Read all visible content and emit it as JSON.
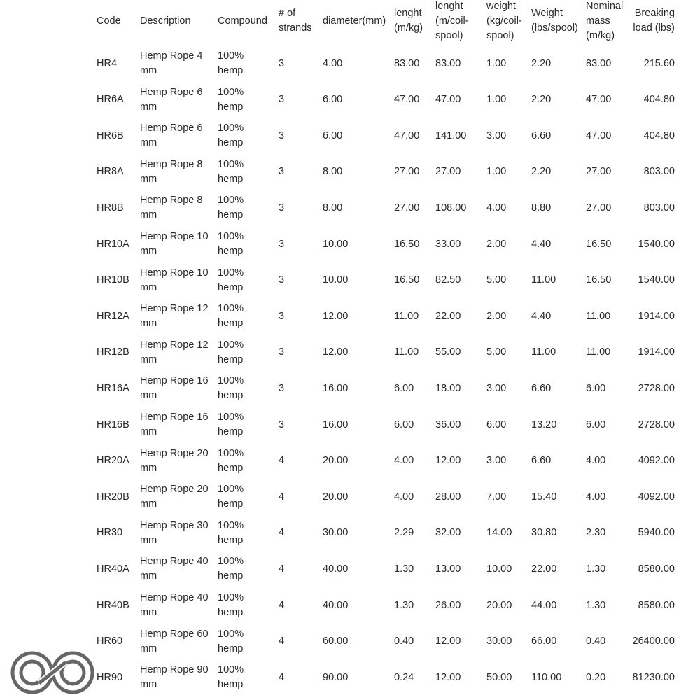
{
  "table": {
    "header": [
      "Code",
      "Description",
      "Compound",
      "# of strands",
      "diameter(mm)",
      "lenght (m/kg)",
      "lenght (m/coil-spool)",
      "weight (kg/coil-spool)",
      "Weight (lbs/spool)",
      "Nominal mass (m/kg)",
      "Breaking load (lbs)"
    ],
    "rows": [
      [
        "HR4",
        "Hemp Rope 4 mm",
        "100% hemp",
        "3",
        "4.00",
        "83.00",
        "83.00",
        "1.00",
        "2.20",
        "83.00",
        "215.60"
      ],
      [
        "HR6A",
        "Hemp Rope 6 mm",
        "100% hemp",
        "3",
        "6.00",
        "47.00",
        "47.00",
        "1.00",
        "2.20",
        "47.00",
        "404.80"
      ],
      [
        "HR6B",
        "Hemp Rope 6 mm",
        "100% hemp",
        "3",
        "6.00",
        "47.00",
        "141.00",
        "3.00",
        "6.60",
        "47.00",
        "404.80"
      ],
      [
        "HR8A",
        "Hemp Rope 8 mm",
        "100% hemp",
        "3",
        "8.00",
        "27.00",
        "27.00",
        "1.00",
        "2.20",
        "27.00",
        "803.00"
      ],
      [
        "HR8B",
        "Hemp Rope 8 mm",
        "100% hemp",
        "3",
        "8.00",
        "27.00",
        "108.00",
        "4.00",
        "8.80",
        "27.00",
        "803.00"
      ],
      [
        "HR10A",
        "Hemp Rope 10 mm",
        "100% hemp",
        "3",
        "10.00",
        "16.50",
        "33.00",
        "2.00",
        "4.40",
        "16.50",
        "1540.00"
      ],
      [
        "HR10B",
        "Hemp Rope 10 mm",
        "100% hemp",
        "3",
        "10.00",
        "16.50",
        "82.50",
        "5.00",
        "11.00",
        "16.50",
        "1540.00"
      ],
      [
        "HR12A",
        "Hemp Rope 12 mm",
        "100% hemp",
        "3",
        "12.00",
        "11.00",
        "22.00",
        "2.00",
        "4.40",
        "11.00",
        "1914.00"
      ],
      [
        "HR12B",
        "Hemp Rope 12 mm",
        "100% hemp",
        "3",
        "12.00",
        "11.00",
        "55.00",
        "5.00",
        "11.00",
        "11.00",
        "1914.00"
      ],
      [
        "HR16A",
        "Hemp Rope 16 mm",
        "100% hemp",
        "3",
        "16.00",
        "6.00",
        "18.00",
        "3.00",
        "6.60",
        "6.00",
        "2728.00"
      ],
      [
        "HR16B",
        "Hemp Rope 16 mm",
        "100% hemp",
        "3",
        "16.00",
        "6.00",
        "36.00",
        "6.00",
        "13.20",
        "6.00",
        "2728.00"
      ],
      [
        "HR20A",
        "Hemp Rope 20 mm",
        "100% hemp",
        "4",
        "20.00",
        "4.00",
        "12.00",
        "3.00",
        "6.60",
        "4.00",
        "4092.00"
      ],
      [
        "HR20B",
        "Hemp Rope 20 mm",
        "100% hemp",
        "4",
        "20.00",
        "4.00",
        "28.00",
        "7.00",
        "15.40",
        "4.00",
        "4092.00"
      ],
      [
        "HR30",
        "Hemp Rope 30 mm",
        "100% hemp",
        "4",
        "30.00",
        "2.29",
        "32.00",
        "14.00",
        "30.80",
        "2.30",
        "5940.00"
      ],
      [
        "HR40A",
        "Hemp Rope 40 mm",
        "100% hemp",
        "4",
        "40.00",
        "1.30",
        "13.00",
        "10.00",
        "22.00",
        "1.30",
        "8580.00"
      ],
      [
        "HR40B",
        "Hemp Rope 40 mm",
        "100% hemp",
        "4",
        "40.00",
        "1.30",
        "26.00",
        "20.00",
        "44.00",
        "1.30",
        "8580.00"
      ],
      [
        "HR60",
        "Hemp Rope 60 mm",
        "100% hemp",
        "4",
        "60.00",
        "0.40",
        "12.00",
        "30.00",
        "66.00",
        "0.40",
        "26400.00"
      ],
      [
        "HR90",
        "Hemp Rope 90 mm",
        "100% hemp",
        "4",
        "90.00",
        "0.24",
        "12.00",
        "50.00",
        "110.00",
        "0.20",
        "81230.00"
      ]
    ]
  }
}
